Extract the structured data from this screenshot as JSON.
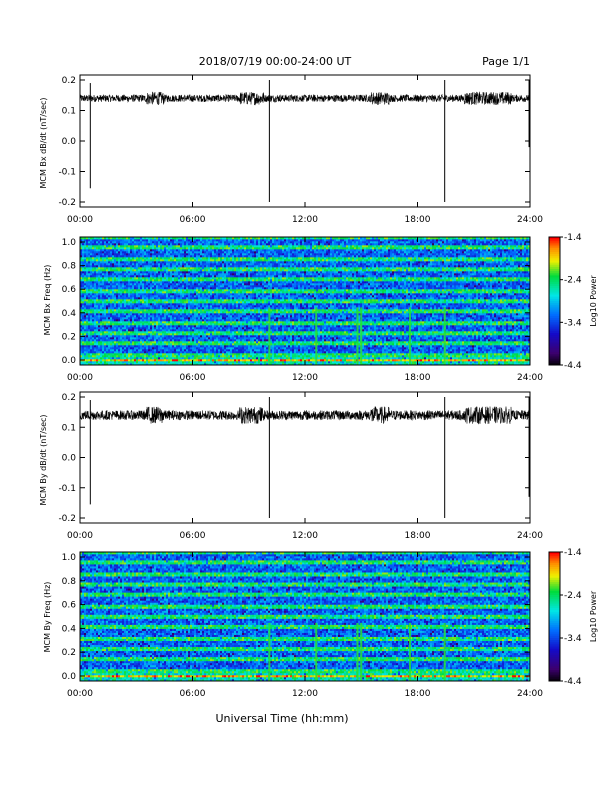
{
  "header": {
    "title": "2018/07/19   00:00-24:00 UT",
    "page": "Page 1/1"
  },
  "xaxis_label": "Universal Time (hh:mm)",
  "chart_data": [
    {
      "type": "line",
      "ylabel": "MCM Bx dB/dt (nT/sec)",
      "xlim": [
        0,
        24
      ],
      "ylim": [
        -0.2,
        0.2
      ],
      "xticks": [
        "00:00",
        "06:00",
        "12:00",
        "18:00",
        "24:00"
      ],
      "yticks": [
        "0.2",
        "0.1",
        "0.0",
        "-0.1",
        "-0.2"
      ],
      "baseline": 0.14,
      "noise_amplitude": 0.012,
      "spikes": [
        {
          "t": 0.55,
          "min": -0.155,
          "max": 0.19
        },
        {
          "t": 10.1,
          "min": -0.2,
          "max": 0.2
        },
        {
          "t": 19.45,
          "min": -0.2,
          "max": 0.2
        },
        {
          "t": 23.95,
          "min": -0.02,
          "max": 0.2
        }
      ],
      "color": "#000000"
    },
    {
      "type": "heatmap",
      "ylabel": "MCM Bx Freq (Hz)",
      "xlim": [
        0,
        24
      ],
      "ylim": [
        0.0,
        1.0
      ],
      "xticks": [
        "00:00",
        "06:00",
        "12:00",
        "18:00",
        "24:00"
      ],
      "yticks": [
        "1.0",
        "0.8",
        "0.6",
        "0.4",
        "0.2",
        "0.0"
      ],
      "colorbar": {
        "label": "Log10 Power",
        "range": [
          -4.4,
          -1.4
        ],
        "ticks": [
          "-1.4",
          "-2.4",
          "-3.4",
          "-4.4"
        ]
      },
      "harmonic_lines_hz": [
        0.04,
        0.08,
        0.17,
        0.25,
        0.33,
        0.42,
        0.5,
        0.58,
        0.67,
        0.75,
        0.83,
        0.92,
        1.0
      ],
      "vertical_bursts_t": [
        10.1,
        12.6,
        14.8,
        15.0,
        17.6,
        19.45
      ]
    },
    {
      "type": "line",
      "ylabel": "MCM By dB/dt (nT/sec)",
      "xlim": [
        0,
        24
      ],
      "ylim": [
        -0.2,
        0.2
      ],
      "xticks": [
        "00:00",
        "06:00",
        "12:00",
        "18:00",
        "24:00"
      ],
      "yticks": [
        "0.2",
        "0.1",
        "0.0",
        "-0.1",
        "-0.2"
      ],
      "baseline": 0.14,
      "noise_amplitude": 0.016,
      "spikes": [
        {
          "t": 0.55,
          "min": -0.155,
          "max": 0.19
        },
        {
          "t": 10.1,
          "min": -0.2,
          "max": 0.2
        },
        {
          "t": 19.45,
          "min": -0.2,
          "max": 0.2
        },
        {
          "t": 23.95,
          "min": -0.13,
          "max": 0.2
        }
      ],
      "color": "#000000"
    },
    {
      "type": "heatmap",
      "ylabel": "MCM By Freq (Hz)",
      "xlim": [
        0,
        24
      ],
      "ylim": [
        0.0,
        1.0
      ],
      "xticks": [
        "00:00",
        "06:00",
        "12:00",
        "18:00",
        "24:00"
      ],
      "yticks": [
        "1.0",
        "0.8",
        "0.6",
        "0.4",
        "0.2",
        "0.0"
      ],
      "colorbar": {
        "label": "Log10 Power",
        "range": [
          -4.4,
          -1.4
        ],
        "ticks": [
          "-1.4",
          "-2.4",
          "-3.4",
          "-4.4"
        ]
      },
      "harmonic_lines_hz": [
        0.04,
        0.08,
        0.17,
        0.25,
        0.33,
        0.42,
        0.5,
        0.58,
        0.67,
        0.75,
        0.83,
        0.92,
        1.0
      ],
      "vertical_bursts_t": [
        10.1,
        12.6,
        14.8,
        15.0,
        17.6,
        19.45
      ]
    }
  ]
}
